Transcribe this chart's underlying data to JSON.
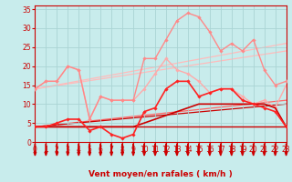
{
  "xlabel": "Vent moyen/en rafales ( km/h )",
  "background_color": "#c8ecec",
  "grid_color": "#aad4d4",
  "xlim": [
    0,
    23
  ],
  "ylim": [
    0,
    36
  ],
  "yticks": [
    0,
    5,
    10,
    15,
    20,
    25,
    30,
    35
  ],
  "xticks": [
    0,
    1,
    2,
    3,
    4,
    5,
    6,
    7,
    8,
    9,
    10,
    11,
    12,
    13,
    14,
    15,
    16,
    17,
    18,
    19,
    20,
    21,
    22,
    23
  ],
  "lines": [
    {
      "x": [
        0,
        1,
        2,
        3,
        4,
        5,
        6,
        7,
        8,
        9,
        10,
        11,
        12,
        13,
        14,
        15,
        16,
        17,
        18,
        19,
        20,
        21,
        22,
        23
      ],
      "y": [
        14,
        16,
        16,
        20,
        19,
        6,
        12,
        11,
        11,
        11,
        14,
        18,
        22,
        19,
        18,
        16,
        13,
        14,
        14,
        12,
        10,
        11,
        9,
        15
      ],
      "color": "#ffaaaa",
      "linewidth": 1.0,
      "marker": "D",
      "markersize": 1.8,
      "zorder": 2
    },
    {
      "x": [
        0,
        1,
        2,
        3,
        4,
        5,
        6,
        7,
        8,
        9,
        10,
        11,
        12,
        13,
        14,
        15,
        16,
        17,
        18,
        19,
        20,
        21,
        22,
        23
      ],
      "y": [
        14,
        16,
        16,
        20,
        19,
        6,
        12,
        11,
        11,
        11,
        22,
        22,
        27,
        32,
        34,
        33,
        29,
        24,
        26,
        24,
        27,
        19,
        15,
        16
      ],
      "color": "#ff8888",
      "linewidth": 1.0,
      "marker": "D",
      "markersize": 1.8,
      "zorder": 3
    },
    {
      "x": [
        0,
        1,
        2,
        3,
        4,
        5,
        6,
        7,
        8,
        9,
        10,
        11,
        12,
        13,
        14,
        15,
        16,
        17,
        18,
        19,
        20,
        21,
        22,
        23
      ],
      "y": [
        4,
        4,
        5,
        6,
        6,
        3,
        4,
        2,
        1,
        2,
        8,
        9,
        14,
        16,
        16,
        12,
        13,
        14,
        14,
        11,
        10,
        9,
        8,
        4
      ],
      "color": "#ff2222",
      "linewidth": 1.2,
      "marker": "D",
      "markersize": 1.8,
      "zorder": 4
    },
    {
      "x": [
        0,
        1,
        2,
        3,
        4,
        5,
        6,
        7,
        8,
        9,
        10,
        11,
        12,
        13,
        14,
        15,
        16,
        17,
        18,
        19,
        20,
        21,
        22,
        23
      ],
      "y": [
        4,
        4,
        4,
        4,
        4,
        4,
        4,
        4,
        4,
        4,
        5,
        6,
        7,
        8,
        9,
        10,
        10,
        10,
        10,
        10,
        10,
        10,
        9,
        4
      ],
      "color": "#cc0000",
      "linewidth": 1.2,
      "marker": null,
      "markersize": 0,
      "zorder": 3
    },
    {
      "x": [
        0,
        23
      ],
      "y": [
        4,
        4
      ],
      "color": "#cc0000",
      "linewidth": 1.0,
      "marker": null,
      "markersize": 0,
      "zorder": 2
    },
    {
      "x": [
        0,
        23
      ],
      "y": [
        14,
        26
      ],
      "color": "#ffbbbb",
      "linewidth": 0.9,
      "marker": null,
      "markersize": 0,
      "zorder": 1
    },
    {
      "x": [
        0,
        23
      ],
      "y": [
        14,
        24
      ],
      "color": "#ffbbbb",
      "linewidth": 0.9,
      "marker": null,
      "markersize": 0,
      "zorder": 1
    },
    {
      "x": [
        0,
        23
      ],
      "y": [
        4,
        11
      ],
      "color": "#ff6666",
      "linewidth": 0.9,
      "marker": null,
      "markersize": 0,
      "zorder": 1
    },
    {
      "x": [
        0,
        23
      ],
      "y": [
        4,
        10
      ],
      "color": "#cc0000",
      "linewidth": 0.9,
      "marker": null,
      "markersize": 0,
      "zorder": 1
    }
  ],
  "arrow_color": "#cc0000",
  "axis_color": "#cc0000",
  "tick_color": "#cc0000",
  "label_color": "#cc0000",
  "label_fontsize": 6.5,
  "tick_fontsize": 5.5
}
